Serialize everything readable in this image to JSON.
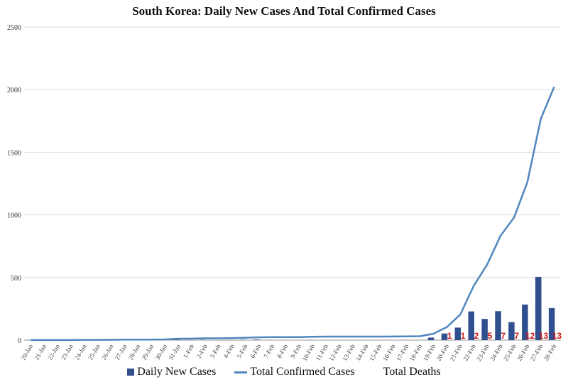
{
  "chart_data": {
    "type": "bar+line",
    "title": "South Korea: Daily New Cases And Total Confirmed Cases",
    "categories": [
      "20-Jan",
      "21-Jan",
      "22-Jan",
      "23-Jan",
      "24-Jan",
      "25-Jan",
      "26-Jan",
      "27-Jan",
      "28-Jan",
      "29-Jan",
      "30-Jan",
      "31-Jan",
      "1-Feb",
      "2-Feb",
      "3-Feb",
      "4-Feb",
      "5-Feb",
      "6-Feb",
      "7-Feb",
      "8-Feb",
      "9-Feb",
      "10-Feb",
      "11-Feb",
      "12-Feb",
      "13-Feb",
      "14-Feb",
      "15-Feb",
      "16-Feb",
      "17-Feb",
      "18-Feb",
      "19-Feb",
      "20-Feb",
      "21-Feb",
      "22-Feb",
      "23-Feb",
      "24-Feb",
      "25-Feb",
      "26-Feb",
      "27-Feb",
      "28-Feb"
    ],
    "series": [
      {
        "name": "Daily New Cases",
        "kind": "bar",
        "color": "#2f4f8f",
        "values": [
          1,
          0,
          0,
          0,
          1,
          0,
          1,
          1,
          0,
          0,
          2,
          5,
          1,
          3,
          0,
          1,
          3,
          5,
          1,
          1,
          0,
          1,
          0,
          0,
          0,
          0,
          0,
          0,
          1,
          1,
          20,
          53,
          100,
          229,
          169,
          231,
          144,
          284,
          505,
          256
        ]
      },
      {
        "name": "Total Confirmed Cases",
        "kind": "line",
        "color": "#4f86be",
        "values": [
          1,
          1,
          1,
          1,
          2,
          2,
          3,
          4,
          4,
          4,
          6,
          11,
          12,
          15,
          15,
          16,
          19,
          23,
          24,
          24,
          24,
          27,
          28,
          28,
          28,
          28,
          28,
          29,
          30,
          31,
          51,
          104,
          204,
          433,
          602,
          833,
          977,
          1261,
          1766,
          2022
        ]
      },
      {
        "name": "Total Deaths",
        "kind": "label",
        "color": "#cc1a1a",
        "values": [
          null,
          null,
          null,
          null,
          null,
          null,
          null,
          null,
          null,
          null,
          null,
          null,
          null,
          null,
          null,
          null,
          null,
          null,
          null,
          null,
          null,
          null,
          null,
          null,
          null,
          null,
          null,
          null,
          null,
          null,
          null,
          1,
          1,
          2,
          5,
          7,
          7,
          12,
          13,
          13
        ]
      }
    ],
    "xlabel": "",
    "ylabel": "",
    "ylim": [
      0,
      2500
    ],
    "yticks": [
      0,
      500,
      1000,
      1500,
      2000,
      2500
    ],
    "grid": "horizontal",
    "legend_position": "bottom"
  }
}
